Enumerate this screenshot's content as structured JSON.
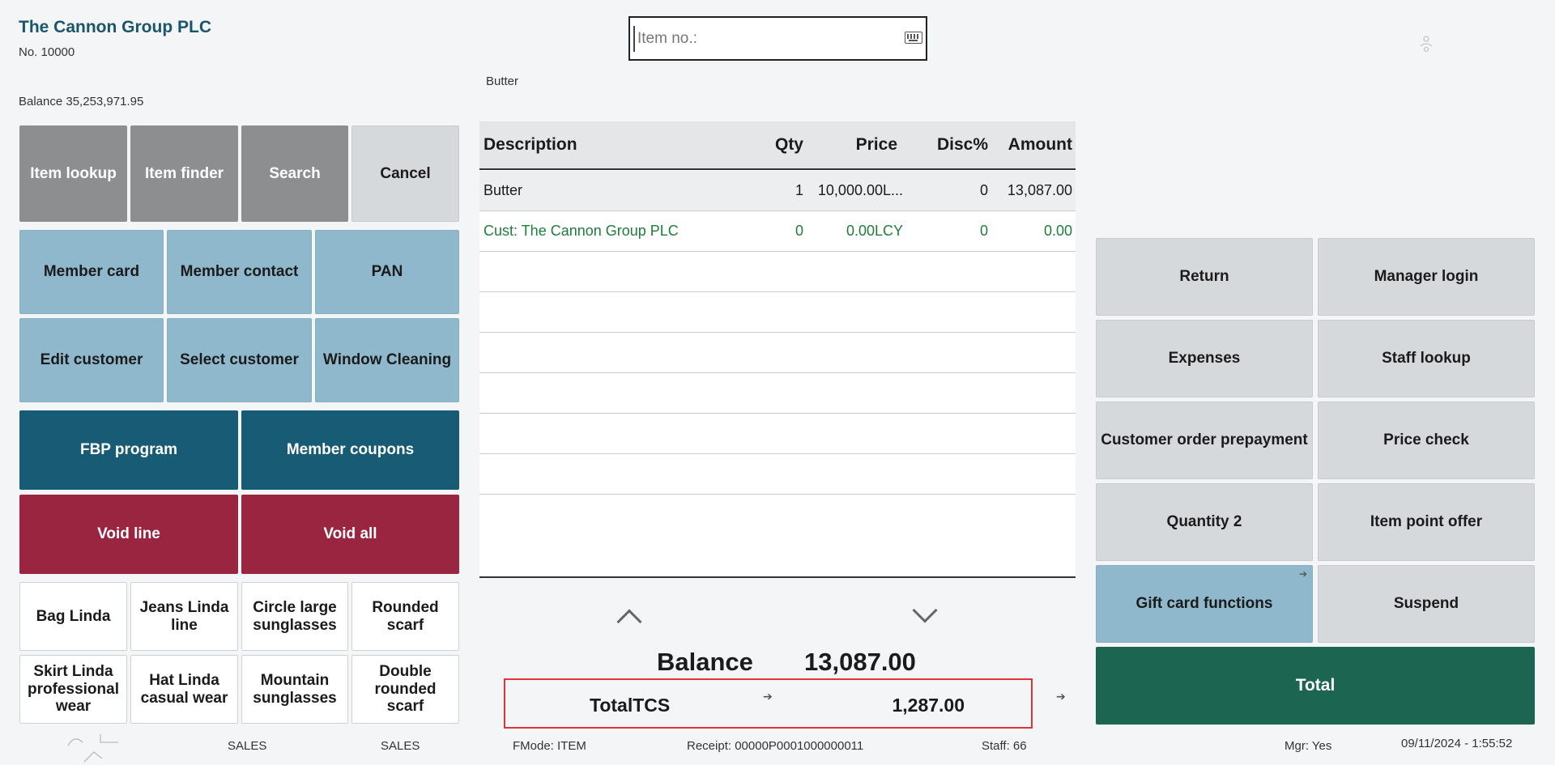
{
  "customer": {
    "name": "The Cannon Group PLC",
    "number": "No. 10000",
    "balance": "Balance 35,253,971.95"
  },
  "item_input": {
    "placeholder": "Item no.:",
    "value": ""
  },
  "last_item": "Butter",
  "top_buttons": [
    "Item lookup",
    "Item finder",
    "Search",
    "Cancel"
  ],
  "member_buttons": [
    "Member card",
    "Member contact",
    "PAN",
    "Edit customer",
    "Select customer",
    "Window Cleaning"
  ],
  "program_buttons": [
    "FBP program",
    "Member coupons"
  ],
  "void_buttons": [
    "Void line",
    "Void all"
  ],
  "product_buttons": [
    "Bag Linda",
    "Jeans Linda line",
    "Circle large sunglasses",
    "Rounded scarf",
    "Skirt Linda professional wear",
    "Hat Linda casual wear",
    "Mountain sunglasses",
    "Double rounded scarf"
  ],
  "table": {
    "columns": [
      "Description",
      "Qty",
      "Price",
      "Disc%",
      "Amount"
    ],
    "rows": [
      {
        "description": "Butter",
        "qty": "1",
        "price": "10,000.00L...",
        "disc": "0",
        "amount": "13,087.00"
      },
      {
        "description": "Cust: The Cannon Group PLC",
        "qty": "0",
        "price": "0.00LCY",
        "disc": "0",
        "amount": "0.00"
      }
    ]
  },
  "totals": {
    "balance_label": "Balance",
    "balance_value": "13,087.00",
    "tcs_label": "TotalTCS",
    "tcs_value": "1,287.00"
  },
  "right_buttons": [
    "Return",
    "Manager login",
    "Expenses",
    "Staff lookup",
    "Customer order prepayment",
    "Price check",
    "Quantity 2",
    "Item point offer",
    "Gift card functions",
    "Suspend"
  ],
  "total_button": "Total",
  "status": {
    "tab1": "SALES",
    "tab2": "SALES",
    "fmode": "FMode: ITEM",
    "receipt": "Receipt: 00000P0001000000011",
    "staff": "Staff: 66",
    "mgr": "Mgr: Yes",
    "datetime": "09/11/2024 - 1:55:52"
  },
  "colors": {
    "accent_teal": "#175b75",
    "accent_red": "#9a2541",
    "accent_green": "#1c6651",
    "customer_line": "#1e7d3a",
    "highlight_border": "#e0343b"
  }
}
